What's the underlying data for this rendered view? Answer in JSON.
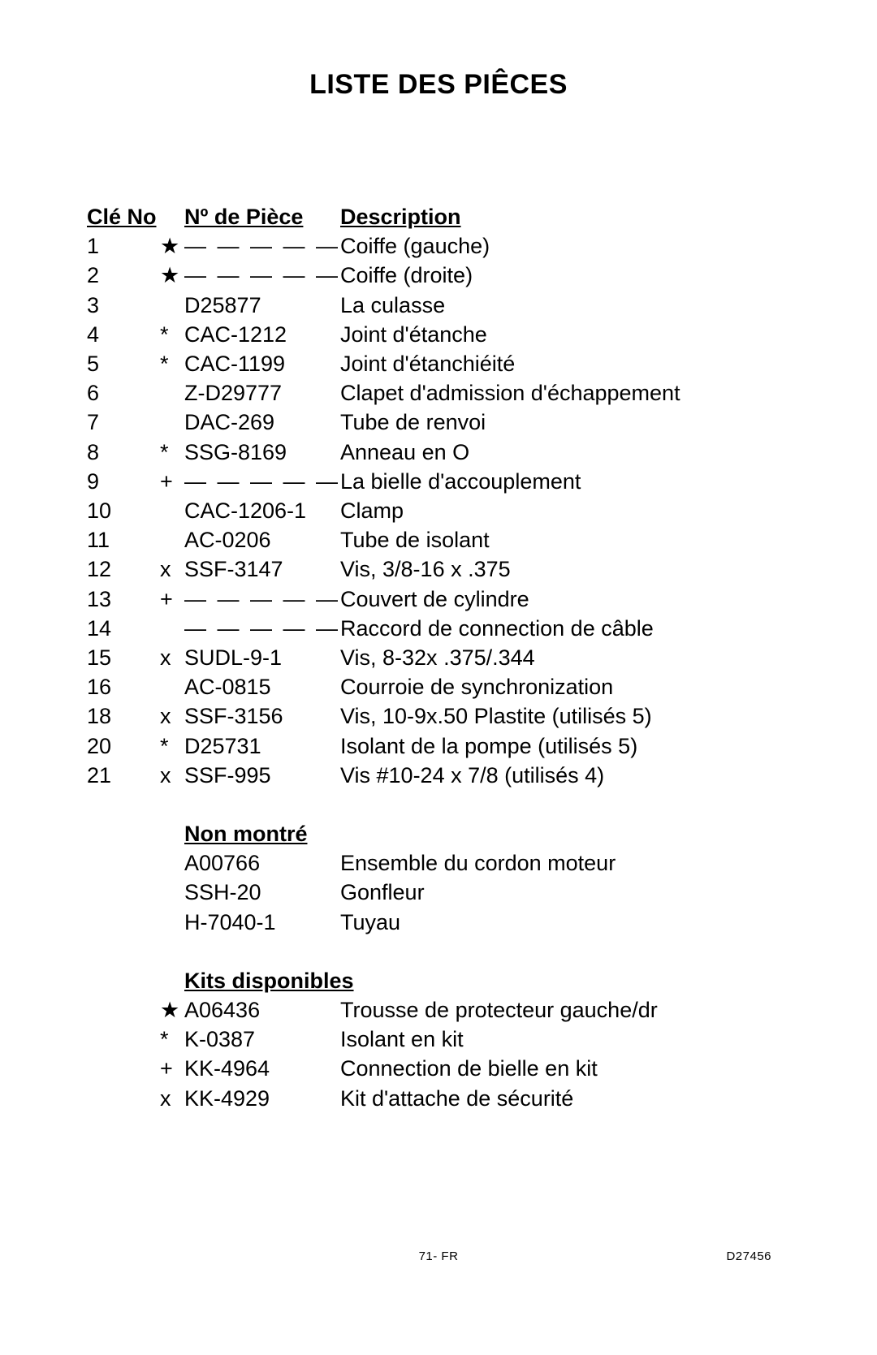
{
  "title": "LISTE DES PIÊCES",
  "headers": {
    "key": "Clé No",
    "part": "Nº de Pièce",
    "desc": "Description"
  },
  "dash_placeholder": "— — — — —",
  "rows": [
    {
      "key": "1",
      "mark": "★",
      "part": "",
      "dash": true,
      "desc": "Coiffe (gauche)"
    },
    {
      "key": "2",
      "mark": "★",
      "part": "",
      "dash": true,
      "desc": "Coiffe (droite)"
    },
    {
      "key": "3",
      "mark": "",
      "part": "D25877",
      "dash": false,
      "desc": "La culasse"
    },
    {
      "key": "4",
      "mark": "*",
      "part": "CAC-1212",
      "dash": false,
      "desc": "Joint d'étanche"
    },
    {
      "key": "5",
      "mark": "*",
      "part": "CAC-1199",
      "dash": false,
      "desc": "Joint d'étanchiéité"
    },
    {
      "key": "6",
      "mark": "",
      "part": "Z-D29777",
      "dash": false,
      "desc": "Clapet d'admission d'échappement"
    },
    {
      "key": "7",
      "mark": "",
      "part": "DAC-269",
      "dash": false,
      "desc": "Tube de renvoi"
    },
    {
      "key": "8",
      "mark": "*",
      "part": "SSG-8169",
      "dash": false,
      "desc": "Anneau en O"
    },
    {
      "key": "9",
      "mark": "+",
      "part": "",
      "dash": true,
      "desc": "La bielle d'accouplement"
    },
    {
      "key": "10",
      "mark": "",
      "part": "CAC-1206-1",
      "dash": false,
      "desc": "Clamp"
    },
    {
      "key": "11",
      "mark": "",
      "part": "AC-0206",
      "dash": false,
      "desc": "Tube de isolant"
    },
    {
      "key": "12",
      "mark": "x",
      "part": "SSF-3147",
      "dash": false,
      "desc": "Vis, 3/8-16 x .375"
    },
    {
      "key": "13",
      "mark": "+",
      "part": "",
      "dash": true,
      "desc": "Couvert de cylindre"
    },
    {
      "key": "14",
      "mark": "",
      "part": "",
      "dash": true,
      "desc": "Raccord de connection de câble"
    },
    {
      "key": "15",
      "mark": "x",
      "part": "SUDL-9-1",
      "dash": false,
      "desc": "Vis, 8-32x .375/.344"
    },
    {
      "key": "16",
      "mark": "",
      "part": "AC-0815",
      "dash": false,
      "desc": "Courroie de synchronization"
    },
    {
      "key": "18",
      "mark": "x",
      "part": "SSF-3156",
      "dash": false,
      "desc": "Vis, 10-9x.50 Plastite (utilisés 5)"
    },
    {
      "key": "20",
      "mark": "*",
      "part": "D25731",
      "dash": false,
      "desc": "Isolant de la pompe (utilisés 5)"
    },
    {
      "key": "21",
      "mark": "x",
      "part": "SSF-995",
      "dash": false,
      "desc": "Vis #10-24 x 7/8 (utilisés 4)"
    }
  ],
  "not_shown_header": "Non montré",
  "not_shown": [
    {
      "mark": "",
      "part": "A00766",
      "desc": "Ensemble du cordon moteur"
    },
    {
      "mark": "",
      "part": "SSH-20",
      "desc": "Gonfleur"
    },
    {
      "mark": "",
      "part": "H-7040-1",
      "desc": "Tuyau"
    }
  ],
  "kits_header": "Kits disponibles",
  "kits": [
    {
      "mark": "★",
      "part": "A06436",
      "desc": "Trousse de protecteur gauche/dr"
    },
    {
      "mark": "*",
      "part": "K-0387",
      "desc": "Isolant en kit"
    },
    {
      "mark": "+",
      "part": "KK-4964",
      "desc": "Connection de bielle en kit"
    },
    {
      "mark": "x",
      "part": "KK-4929",
      "desc": "Kit d'attache de sécurité"
    }
  ],
  "footer": {
    "center": "71- FR",
    "right": "D27456"
  }
}
